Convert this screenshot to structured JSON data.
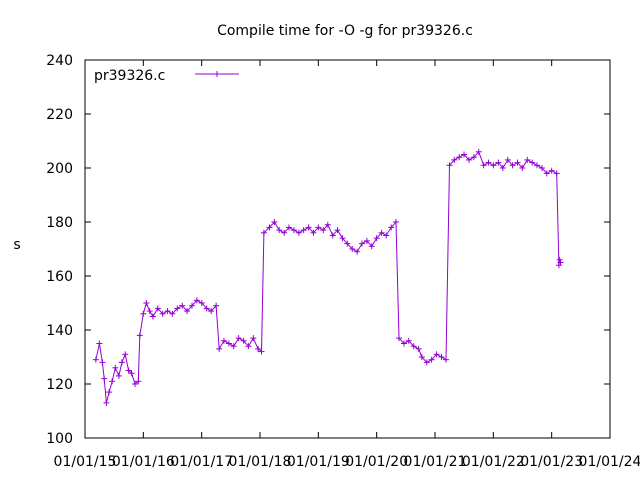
{
  "chart_data": {
    "type": "line",
    "title": "Compile time for -O -g for pr39326.c",
    "xlabel": "",
    "ylabel": "s",
    "ylim": [
      100,
      240
    ],
    "yticks": [
      "100",
      "120",
      "140",
      "160",
      "180",
      "200",
      "220",
      "240"
    ],
    "xlim": [
      "2015-01-01",
      "2024-01-01"
    ],
    "xticks": [
      "01/01/15",
      "01/01/16",
      "01/01/17",
      "01/01/18",
      "01/01/19",
      "01/01/20",
      "01/01/21",
      "01/01/22",
      "01/01/23",
      "01/01/24"
    ],
    "grid": false,
    "legend": "top-left",
    "series": [
      {
        "name": "pr39326.c",
        "color": "#9400d3",
        "marker": "plus",
        "points": [
          [
            "2015-03-10",
            129
          ],
          [
            "2015-04-01",
            135
          ],
          [
            "2015-04-20",
            128
          ],
          [
            "2015-05-01",
            122
          ],
          [
            "2015-05-15",
            113
          ],
          [
            "2015-06-01",
            117
          ],
          [
            "2015-06-20",
            121
          ],
          [
            "2015-07-10",
            126
          ],
          [
            "2015-08-01",
            123
          ],
          [
            "2015-08-20",
            128
          ],
          [
            "2015-09-10",
            131
          ],
          [
            "2015-10-01",
            125
          ],
          [
            "2015-10-20",
            124
          ],
          [
            "2015-11-10",
            120
          ],
          [
            "2015-12-01",
            121
          ],
          [
            "2015-12-10",
            138
          ],
          [
            "2016-01-01",
            146
          ],
          [
            "2016-01-20",
            150
          ],
          [
            "2016-02-10",
            147
          ],
          [
            "2016-03-01",
            145
          ],
          [
            "2016-04-01",
            148
          ],
          [
            "2016-05-01",
            146
          ],
          [
            "2016-06-01",
            147
          ],
          [
            "2016-07-01",
            146
          ],
          [
            "2016-08-01",
            148
          ],
          [
            "2016-09-01",
            149
          ],
          [
            "2016-10-01",
            147
          ],
          [
            "2016-11-01",
            149
          ],
          [
            "2016-12-01",
            151
          ],
          [
            "2017-01-01",
            150
          ],
          [
            "2017-02-01",
            148
          ],
          [
            "2017-03-01",
            147
          ],
          [
            "2017-04-01",
            149
          ],
          [
            "2017-04-20",
            133
          ],
          [
            "2017-05-20",
            136
          ],
          [
            "2017-06-20",
            135
          ],
          [
            "2017-07-20",
            134
          ],
          [
            "2017-08-20",
            137
          ],
          [
            "2017-09-20",
            136
          ],
          [
            "2017-10-20",
            134
          ],
          [
            "2017-11-20",
            137
          ],
          [
            "2017-12-20",
            133
          ],
          [
            "2018-01-10",
            132
          ],
          [
            "2018-01-25",
            176
          ],
          [
            "2018-03-01",
            178
          ],
          [
            "2018-04-01",
            180
          ],
          [
            "2018-05-01",
            177
          ],
          [
            "2018-06-01",
            176
          ],
          [
            "2018-07-01",
            178
          ],
          [
            "2018-08-01",
            177
          ],
          [
            "2018-09-01",
            176
          ],
          [
            "2018-10-01",
            177
          ],
          [
            "2018-11-01",
            178
          ],
          [
            "2018-12-01",
            176
          ],
          [
            "2019-01-01",
            178
          ],
          [
            "2019-02-01",
            177
          ],
          [
            "2019-03-01",
            179
          ],
          [
            "2019-04-01",
            175
          ],
          [
            "2019-05-01",
            177
          ],
          [
            "2019-06-01",
            174
          ],
          [
            "2019-07-01",
            172
          ],
          [
            "2019-08-01",
            170
          ],
          [
            "2019-09-01",
            169
          ],
          [
            "2019-10-01",
            172
          ],
          [
            "2019-11-01",
            173
          ],
          [
            "2019-12-01",
            171
          ],
          [
            "2020-01-01",
            174
          ],
          [
            "2020-02-01",
            176
          ],
          [
            "2020-03-01",
            175
          ],
          [
            "2020-04-01",
            178
          ],
          [
            "2020-05-01",
            180
          ],
          [
            "2020-05-20",
            137
          ],
          [
            "2020-06-20",
            135
          ],
          [
            "2020-07-20",
            136
          ],
          [
            "2020-08-20",
            134
          ],
          [
            "2020-09-20",
            133
          ],
          [
            "2020-10-10",
            130
          ],
          [
            "2020-11-10",
            128
          ],
          [
            "2020-12-10",
            129
          ],
          [
            "2021-01-10",
            131
          ],
          [
            "2021-02-10",
            130
          ],
          [
            "2021-03-10",
            129
          ],
          [
            "2021-04-01",
            201
          ],
          [
            "2021-05-01",
            203
          ],
          [
            "2021-06-01",
            204
          ],
          [
            "2021-07-01",
            205
          ],
          [
            "2021-08-01",
            203
          ],
          [
            "2021-09-01",
            204
          ],
          [
            "2021-10-01",
            206
          ],
          [
            "2021-11-01",
            201
          ],
          [
            "2021-12-01",
            202
          ],
          [
            "2022-01-01",
            201
          ],
          [
            "2022-02-01",
            202
          ],
          [
            "2022-03-01",
            200
          ],
          [
            "2022-04-01",
            203
          ],
          [
            "2022-05-01",
            201
          ],
          [
            "2022-06-01",
            202
          ],
          [
            "2022-07-01",
            200
          ],
          [
            "2022-08-01",
            203
          ],
          [
            "2022-09-01",
            202
          ],
          [
            "2022-10-01",
            201
          ],
          [
            "2022-11-01",
            200
          ],
          [
            "2022-12-01",
            198
          ],
          [
            "2023-01-01",
            199
          ],
          [
            "2023-02-01",
            198
          ],
          [
            "2023-02-15",
            164
          ],
          [
            "2023-02-20",
            166
          ],
          [
            "2023-02-25",
            165
          ]
        ]
      }
    ]
  }
}
